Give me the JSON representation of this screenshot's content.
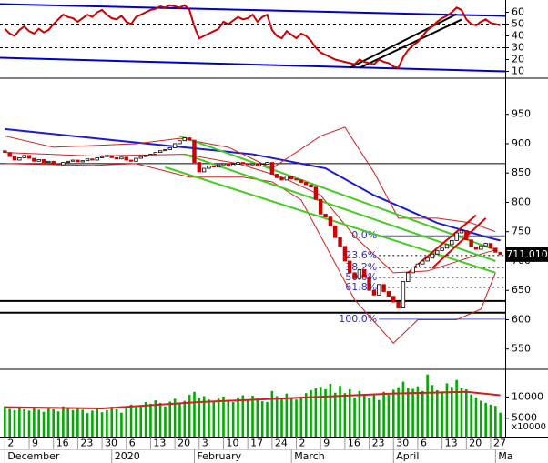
{
  "chart_data": [
    {
      "type": "line",
      "xlim": [
        -1,
        103
      ],
      "ylim": [
        5,
        70.4
      ],
      "yticks": [
        10,
        20,
        30,
        40,
        50,
        60
      ],
      "color": "#cc0000",
      "values": [
        46,
        42,
        40,
        45,
        48,
        44,
        42,
        46,
        43,
        45,
        50,
        54,
        58,
        56,
        55,
        52,
        55,
        58,
        56,
        60,
        62,
        58,
        55,
        54,
        57,
        52,
        50,
        56,
        58,
        60,
        62,
        63,
        65,
        64,
        66,
        65,
        64,
        66,
        62,
        48,
        38,
        40,
        42,
        44,
        46,
        52,
        50,
        53,
        56,
        54,
        55,
        58,
        52,
        56,
        58,
        45,
        40,
        38,
        44,
        41,
        38,
        42,
        40,
        36,
        30,
        26,
        24,
        22,
        20,
        19,
        18,
        17,
        16,
        20,
        18,
        17,
        16,
        20,
        18,
        17,
        14,
        13,
        22,
        28,
        32,
        35,
        40,
        45,
        48,
        52,
        55,
        57,
        60,
        64,
        62,
        54,
        50,
        49,
        52,
        54,
        51,
        50,
        49
      ],
      "ref_lines": [
        50,
        30
      ],
      "trendlines": [
        {
          "color": "#0000cc",
          "x": [
            -1,
            103
          ],
          "y": [
            66.9,
            56.9
          ]
        },
        {
          "color": "#0000cc",
          "x": [
            -1,
            103
          ],
          "y": [
            21.5,
            10
          ]
        },
        {
          "color": "#000000",
          "x": [
            71,
            93
          ],
          "y": [
            13,
            58.5
          ]
        },
        {
          "color": "#000000",
          "x": [
            73,
            94
          ],
          "y": [
            13,
            53.8
          ]
        }
      ]
    },
    {
      "type": "candlestick",
      "xlim": [
        -1,
        103
      ],
      "ylim": [
        517,
        1010
      ],
      "yticks": [
        550,
        600,
        650,
        700,
        750,
        800,
        850,
        900,
        950
      ],
      "up_color": "#ffffff",
      "down_color": "#cc0000",
      "open": [
        888,
        885,
        878,
        872,
        876,
        880,
        875,
        870,
        873,
        868,
        870,
        866,
        864,
        868,
        870,
        872,
        869,
        871,
        874,
        872,
        876,
        878,
        880,
        876,
        874,
        877,
        872,
        870,
        875,
        878,
        880,
        882,
        885,
        888,
        890,
        893,
        900,
        905,
        910,
        906,
        868,
        852,
        858,
        862,
        860,
        864,
        866,
        862,
        865,
        868,
        866,
        864,
        866,
        862,
        865,
        868,
        848,
        842,
        838,
        845,
        840,
        838,
        834,
        830,
        826,
        805,
        780,
        775,
        760,
        740,
        725,
        700,
        680,
        670,
        685,
        672,
        650,
        642,
        660,
        648,
        640,
        630,
        620,
        665,
        680,
        690,
        695,
        700,
        705,
        712,
        718,
        722,
        728,
        735,
        748,
        752,
        736,
        724,
        720,
        726,
        730,
        722,
        715
      ],
      "close": [
        885,
        878,
        872,
        876,
        880,
        875,
        870,
        873,
        868,
        870,
        866,
        864,
        868,
        870,
        872,
        869,
        871,
        874,
        872,
        876,
        878,
        880,
        876,
        874,
        877,
        872,
        870,
        875,
        878,
        880,
        882,
        885,
        888,
        890,
        893,
        900,
        905,
        910,
        906,
        868,
        852,
        858,
        862,
        860,
        864,
        866,
        862,
        865,
        868,
        866,
        864,
        866,
        862,
        865,
        868,
        848,
        842,
        838,
        845,
        840,
        838,
        834,
        830,
        826,
        805,
        780,
        775,
        760,
        740,
        725,
        700,
        680,
        670,
        685,
        672,
        650,
        642,
        660,
        648,
        640,
        630,
        620,
        665,
        680,
        690,
        695,
        700,
        705,
        712,
        718,
        722,
        728,
        735,
        748,
        752,
        736,
        724,
        720,
        726,
        730,
        722,
        715,
        711.01
      ],
      "overlays": [
        {
          "color": "#1a1ad0",
          "width": 2,
          "x": [
            0,
            27,
            51,
            66,
            76,
            89,
            100,
            102
          ],
          "values": [
            925,
            902,
            882,
            858,
            812,
            765,
            739,
            735
          ]
        },
        {
          "color": "#cc2222",
          "width": 1,
          "x": [
            0,
            10,
            27,
            36,
            46,
            55,
            65,
            70,
            76,
            81,
            89,
            96,
            101
          ],
          "values": [
            913,
            894,
            900,
            909,
            894,
            858,
            913,
            928,
            851,
            773,
            773,
            765,
            750
          ]
        },
        {
          "color": "#cc2222",
          "width": 1,
          "x": [
            0,
            18,
            27,
            38,
            49,
            55,
            61,
            66,
            72,
            80,
            85,
            93,
            98,
            101
          ],
          "values": [
            866,
            863,
            866,
            843,
            843,
            835,
            804,
            727,
            634,
            560,
            600,
            600,
            618,
            680
          ]
        },
        {
          "color": "#cc2222",
          "width": 1,
          "x": [
            0,
            18,
            37,
            48,
            57,
            65,
            72,
            80,
            87,
            96,
            101
          ],
          "values": [
            885,
            879,
            882,
            866,
            843,
            812,
            742,
            680,
            683,
            707,
            719
          ]
        }
      ],
      "trendlines": [
        {
          "color": "#44cc22",
          "x": [
            36,
            101
          ],
          "y": [
            913,
            719
          ]
        },
        {
          "color": "#44cc22",
          "x": [
            37,
            101
          ],
          "y": [
            882,
            700
          ]
        },
        {
          "color": "#44cc22",
          "x": [
            33,
            101
          ],
          "y": [
            860,
            680
          ]
        },
        {
          "color": "#dd0000",
          "x": [
            83,
            97
          ],
          "y": [
            680,
            778
          ]
        },
        {
          "color": "#dd0000",
          "x": [
            88,
            99
          ],
          "y": [
            688,
            773
          ]
        }
      ],
      "hlines": [
        {
          "value": 866,
          "color": "#000000",
          "width": 1
        },
        {
          "value": 632,
          "color": "#000000",
          "width": 2
        },
        {
          "value": 612,
          "color": "#000000",
          "width": 2
        }
      ],
      "fib": {
        "x_start": 77,
        "levels": [
          {
            "label": "0.0%",
            "value": 743
          },
          {
            "label": "23.6%",
            "value": 709.5
          },
          {
            "label": "38.2%",
            "value": 688.8
          },
          {
            "label": "50.0%",
            "value": 672
          },
          {
            "label": "61.8%",
            "value": 655.2
          },
          {
            "label": "100.0%",
            "value": 601
          }
        ]
      },
      "last_price": {
        "value": 711.01,
        "label": "711.010"
      }
    },
    {
      "type": "bar",
      "xlim": [
        -1,
        103
      ],
      "ylim": [
        660,
        16300
      ],
      "yticks": [
        5000,
        10000
      ],
      "color": "#00aa00",
      "unit_label": "x10000",
      "values": [
        7800,
        7200,
        6900,
        7500,
        7100,
        6800,
        7600,
        7000,
        6500,
        7300,
        7100,
        6600,
        7800,
        7400,
        6900,
        7500,
        7000,
        6200,
        6800,
        7300,
        6400,
        6900,
        7700,
        7100,
        6300,
        7400,
        8200,
        7600,
        7900,
        8800,
        8400,
        9200,
        8600,
        7800,
        8900,
        9600,
        8700,
        9100,
        10500,
        11200,
        9800,
        10200,
        9400,
        8900,
        9600,
        10100,
        9300,
        8800,
        9900,
        10400,
        9200,
        10300,
        9700,
        9000,
        8800,
        11400,
        10200,
        9600,
        10800,
        9900,
        9400,
        10100,
        10900,
        11600,
        12000,
        12400,
        11800,
        13100,
        11000,
        12600,
        10900,
        11800,
        9900,
        11400,
        10300,
        9700,
        10800,
        9300,
        11200,
        10500,
        11700,
        12300,
        13600,
        12100,
        11900,
        12500,
        11400,
        15300,
        12800,
        11600,
        11300,
        13200,
        12400,
        14000,
        12100,
        11800,
        10600,
        9900,
        9100,
        8600,
        8200,
        7900,
        6300
      ],
      "overlays": [
        {
          "color": "#cc2222",
          "width": 2,
          "x": [
            0,
            20,
            40,
            60,
            80,
            95,
            102
          ],
          "values": [
            7600,
            7300,
            8800,
            9800,
            10800,
            11200,
            10400
          ]
        }
      ],
      "xticks": [
        {
          "value": 0,
          "label": "2"
        },
        {
          "value": 5,
          "label": "9"
        },
        {
          "value": 10,
          "label": "16"
        },
        {
          "value": 15,
          "label": "23"
        },
        {
          "value": 20,
          "label": "30"
        },
        {
          "value": 25,
          "label": "6"
        },
        {
          "value": 30,
          "label": "13"
        },
        {
          "value": 35,
          "label": "20"
        },
        {
          "value": 40,
          "label": "3"
        },
        {
          "value": 45,
          "label": "10"
        },
        {
          "value": 50,
          "label": "17"
        },
        {
          "value": 55,
          "label": "24"
        },
        {
          "value": 60,
          "label": "2"
        },
        {
          "value": 65,
          "label": "9"
        },
        {
          "value": 70,
          "label": "16"
        },
        {
          "value": 75,
          "label": "23"
        },
        {
          "value": 80,
          "label": "30"
        },
        {
          "value": 85,
          "label": "6"
        },
        {
          "value": 90,
          "label": "13"
        },
        {
          "value": 95,
          "label": "20"
        },
        {
          "value": 100,
          "label": "27"
        }
      ],
      "month_ticks": [
        {
          "value": 0,
          "label": "December"
        },
        {
          "value": 22,
          "label": "2020"
        },
        {
          "value": 39,
          "label": "February"
        },
        {
          "value": 59,
          "label": "March"
        },
        {
          "value": 80,
          "label": "April"
        },
        {
          "value": 101,
          "label": "Ma"
        }
      ]
    }
  ]
}
